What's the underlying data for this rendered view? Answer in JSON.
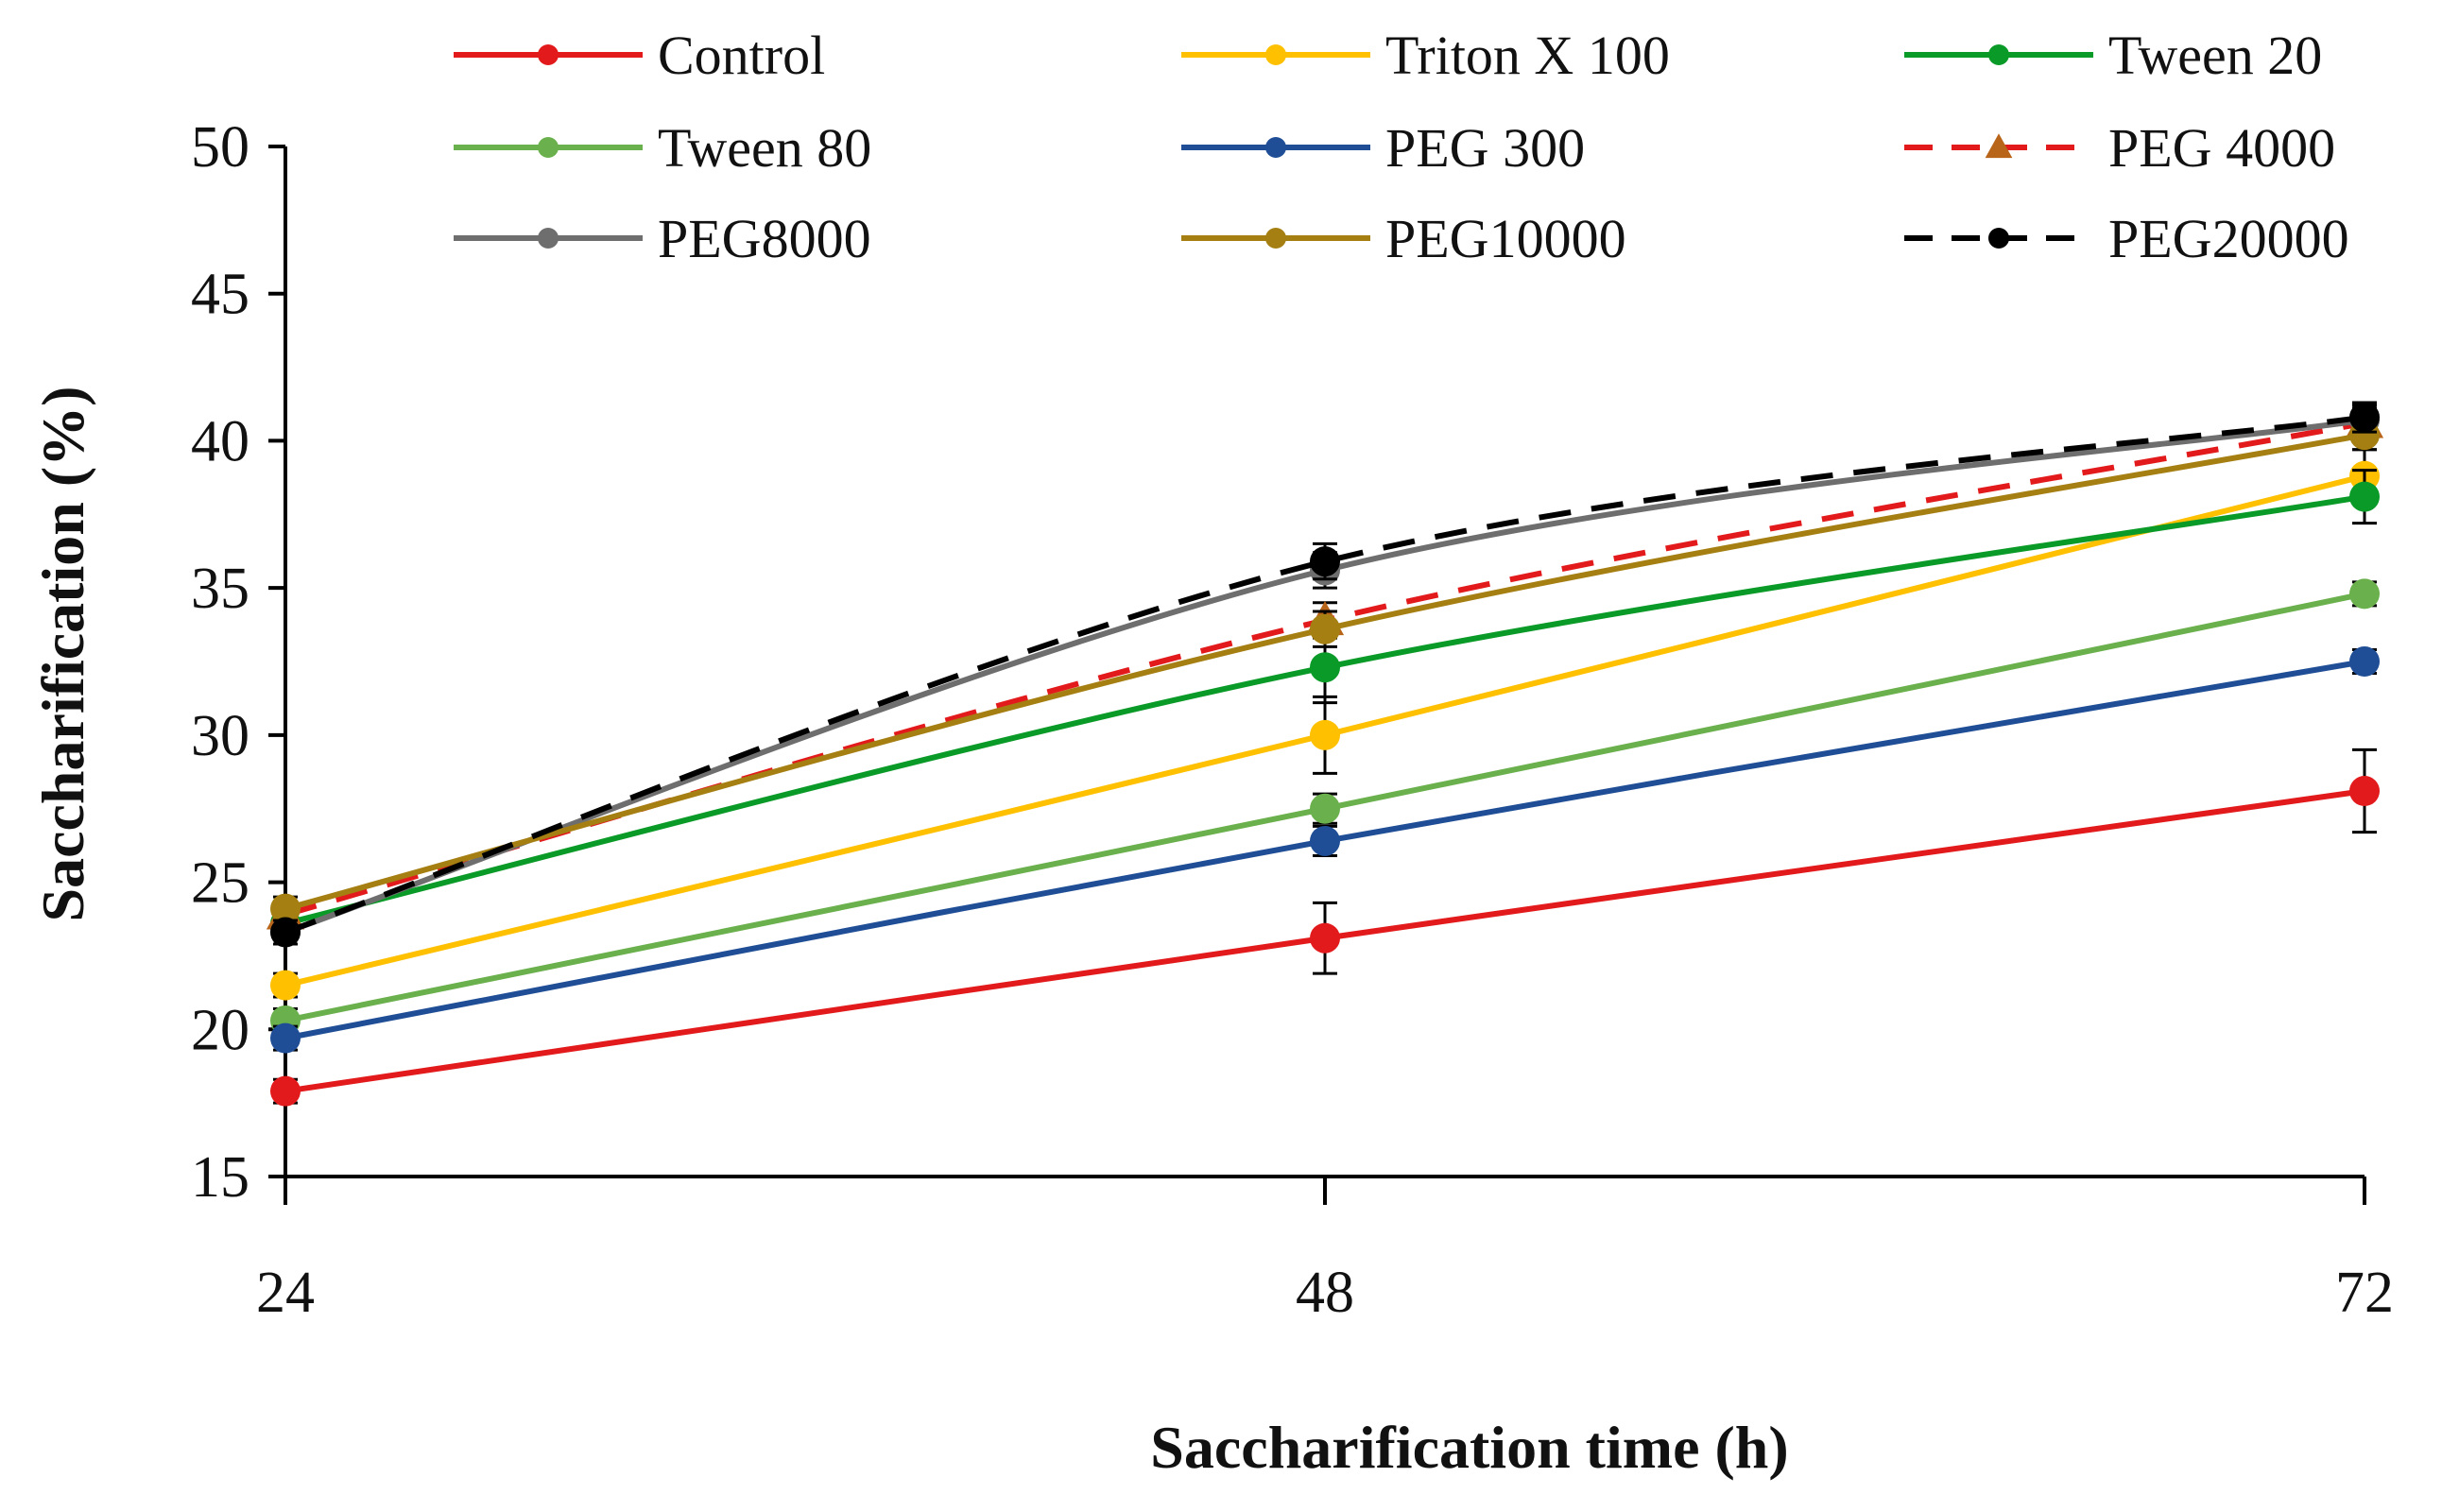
{
  "chart_data": {
    "type": "line",
    "title": "",
    "xlabel": "Saccharification time (h)",
    "ylabel": "Saccharification (%)",
    "x": [
      24,
      48,
      72
    ],
    "x_tick_labels": [
      "24",
      "48",
      "72"
    ],
    "ylim": [
      15,
      50
    ],
    "y_ticks": [
      15,
      20,
      25,
      30,
      35,
      40,
      45,
      50
    ],
    "y_tick_labels": [
      "15",
      "20",
      "25",
      "30",
      "35",
      "40",
      "45",
      "50"
    ],
    "legend_position": "top",
    "series": [
      {
        "name": "Control",
        "color": "#e31a1c",
        "dash": "solid",
        "marker": "circle",
        "values": [
          17.9,
          23.1,
          28.1
        ],
        "errors": [
          0.4,
          1.2,
          1.4
        ]
      },
      {
        "name": "Triton X 100",
        "color": "#ffc000",
        "dash": "solid",
        "marker": "circle",
        "values": [
          21.5,
          30.0,
          38.8
        ],
        "errors": [
          0.4,
          1.3,
          0.9
        ]
      },
      {
        "name": "Tween 20",
        "color": "#0a9a27",
        "dash": "solid",
        "marker": "circle",
        "values": [
          23.6,
          32.3,
          38.1
        ],
        "errors": [
          0.4,
          1.2,
          0.9
        ]
      },
      {
        "name": "Tween 80",
        "color": "#6ab04c",
        "dash": "solid",
        "marker": "circle",
        "values": [
          20.3,
          27.5,
          34.8
        ],
        "errors": [
          0.4,
          0.5,
          0.4
        ]
      },
      {
        "name": "PEG 300",
        "color": "#1f4e96",
        "dash": "solid",
        "marker": "circle",
        "values": [
          19.7,
          26.4,
          32.5
        ],
        "errors": [
          0.4,
          0.5,
          0.4
        ]
      },
      {
        "name": "PEG 4000",
        "color": "#e31a1c",
        "dash": "dash",
        "marker": "triangle",
        "marker_color": "#b8651a",
        "values": [
          23.9,
          33.9,
          40.6
        ],
        "errors": [
          0.4,
          0.6,
          0.5
        ]
      },
      {
        "name": "PEG8000",
        "color": "#6e6e6e",
        "dash": "solid",
        "marker": "circle",
        "values": [
          23.3,
          35.6,
          40.7
        ],
        "errors": [
          0.4,
          0.6,
          0.5
        ]
      },
      {
        "name": "PEG10000",
        "color": "#a57f12",
        "dash": "solid",
        "marker": "circle",
        "values": [
          24.1,
          33.6,
          40.2
        ],
        "errors": [
          0.4,
          0.6,
          0.5
        ]
      },
      {
        "name": "PEG20000",
        "color": "#000000",
        "dash": "dash",
        "marker": "circle",
        "values": [
          23.3,
          35.9,
          40.8
        ],
        "errors": [
          0.4,
          0.6,
          0.5
        ]
      }
    ]
  }
}
